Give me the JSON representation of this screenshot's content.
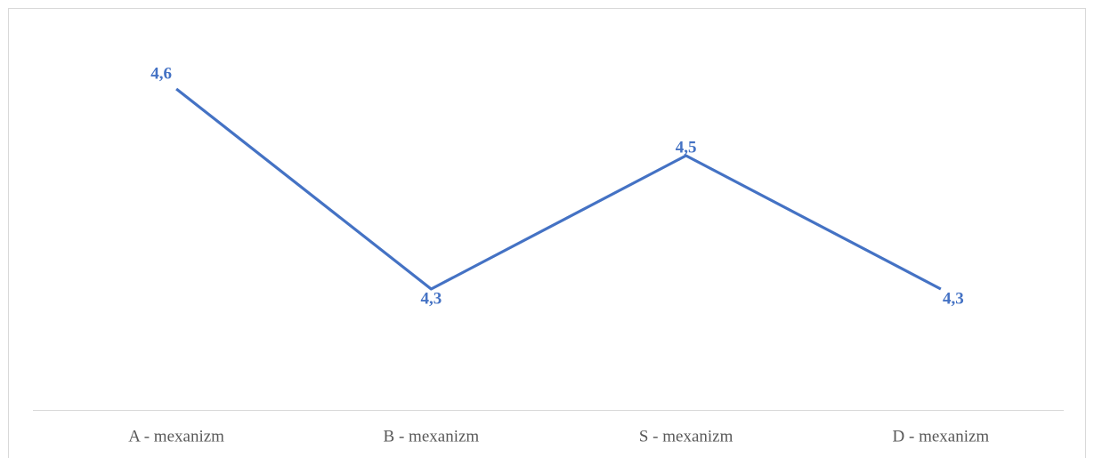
{
  "chart_data": {
    "type": "line",
    "categories": [
      "A - mexanizm",
      "B - mexanizm",
      "S - mexanizm",
      "D - mexanizm"
    ],
    "values": [
      4.6,
      4.3,
      4.5,
      4.3
    ],
    "value_labels": [
      "4,6",
      "4,3",
      "4,5",
      "4,3"
    ],
    "color": "#4472c4",
    "ylim": [
      4.1,
      4.7
    ]
  }
}
